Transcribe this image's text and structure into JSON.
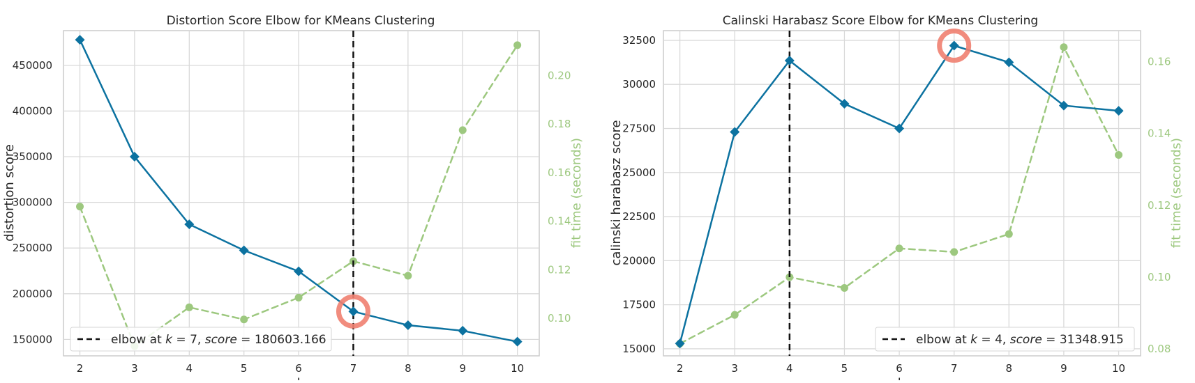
{
  "chart_data": [
    {
      "type": "line",
      "title": "Distortion Score Elbow for KMeans Clustering",
      "xlabel": "k",
      "ylabel": "distortion score",
      "y2label": "fit time (seconds)",
      "x": [
        2,
        3,
        4,
        5,
        6,
        7,
        8,
        9,
        10
      ],
      "xlim": [
        1.7,
        10.4
      ],
      "ylim": [
        132000,
        488000
      ],
      "y2lim": [
        0.0845,
        0.2185
      ],
      "yticks": [
        "150000",
        "200000",
        "250000",
        "300000",
        "350000",
        "400000",
        "450000"
      ],
      "y2ticks": [
        "0.10",
        "0.12",
        "0.14",
        "0.16",
        "0.18",
        "0.20"
      ],
      "xticks": [
        "2",
        "3",
        "4",
        "5",
        "6",
        "7",
        "8",
        "9",
        "10"
      ],
      "grid": true,
      "legend_position": "bottom-left",
      "series": [
        {
          "values": [
            478000,
            350000,
            276000,
            247500,
            224500,
            180603,
            165500,
            159500,
            147500
          ],
          "color": "#0c72a0",
          "axis": "left",
          "style": "solid",
          "marker": "diamond"
        },
        {
          "values": [
            0.146,
            0.0885,
            0.1045,
            0.0995,
            0.1085,
            0.1235,
            0.1175,
            0.1775,
            0.2125
          ],
          "color": "#9dc87f",
          "axis": "right",
          "style": "dashed",
          "marker": "circle"
        }
      ],
      "elbow": {
        "k": 7,
        "score": "180603.166",
        "label_prefix": "elbow at ",
        "label_k": "k",
        "label_eq": " = 7, ",
        "label_score": "score",
        "label_val": " = 180603.166"
      },
      "highlight_color": "#f08070"
    },
    {
      "type": "line",
      "title": "Calinski Harabasz Score Elbow for KMeans Clustering",
      "xlabel": "k",
      "ylabel": "calinski harabasz score",
      "y2label": "fit time (seconds)",
      "x": [
        2,
        3,
        4,
        5,
        6,
        7,
        8,
        9,
        10
      ],
      "xlim": [
        1.7,
        10.4
      ],
      "ylim": [
        14600,
        33050
      ],
      "y2lim": [
        0.0781,
        0.1686
      ],
      "yticks": [
        "15000",
        "17500",
        "20000",
        "22500",
        "25000",
        "27500",
        "30000",
        "32500"
      ],
      "y2ticks": [
        "0.08",
        "0.10",
        "0.12",
        "0.14",
        "0.16"
      ],
      "xticks": [
        "2",
        "3",
        "4",
        "5",
        "6",
        "7",
        "8",
        "9",
        "10"
      ],
      "grid": true,
      "legend_position": "bottom-right",
      "series": [
        {
          "values": [
            15300,
            27300,
            31348.915,
            28900,
            27500,
            32200,
            31250,
            28800,
            28500
          ],
          "color": "#0c72a0",
          "axis": "left",
          "style": "solid",
          "marker": "diamond"
        },
        {
          "values": [
            0.0815,
            0.0895,
            0.1,
            0.097,
            0.108,
            0.107,
            0.112,
            0.164,
            0.134
          ],
          "color": "#9dc87f",
          "axis": "right",
          "style": "dashed",
          "marker": "circle"
        }
      ],
      "elbow": {
        "k": 4,
        "score": "31348.915",
        "label_prefix": "elbow at ",
        "label_k": "k",
        "label_eq": " = 4, ",
        "label_score": "score",
        "label_val": " = 31348.915"
      },
      "highlight_k": 7,
      "highlight_color": "#f08070"
    }
  ]
}
